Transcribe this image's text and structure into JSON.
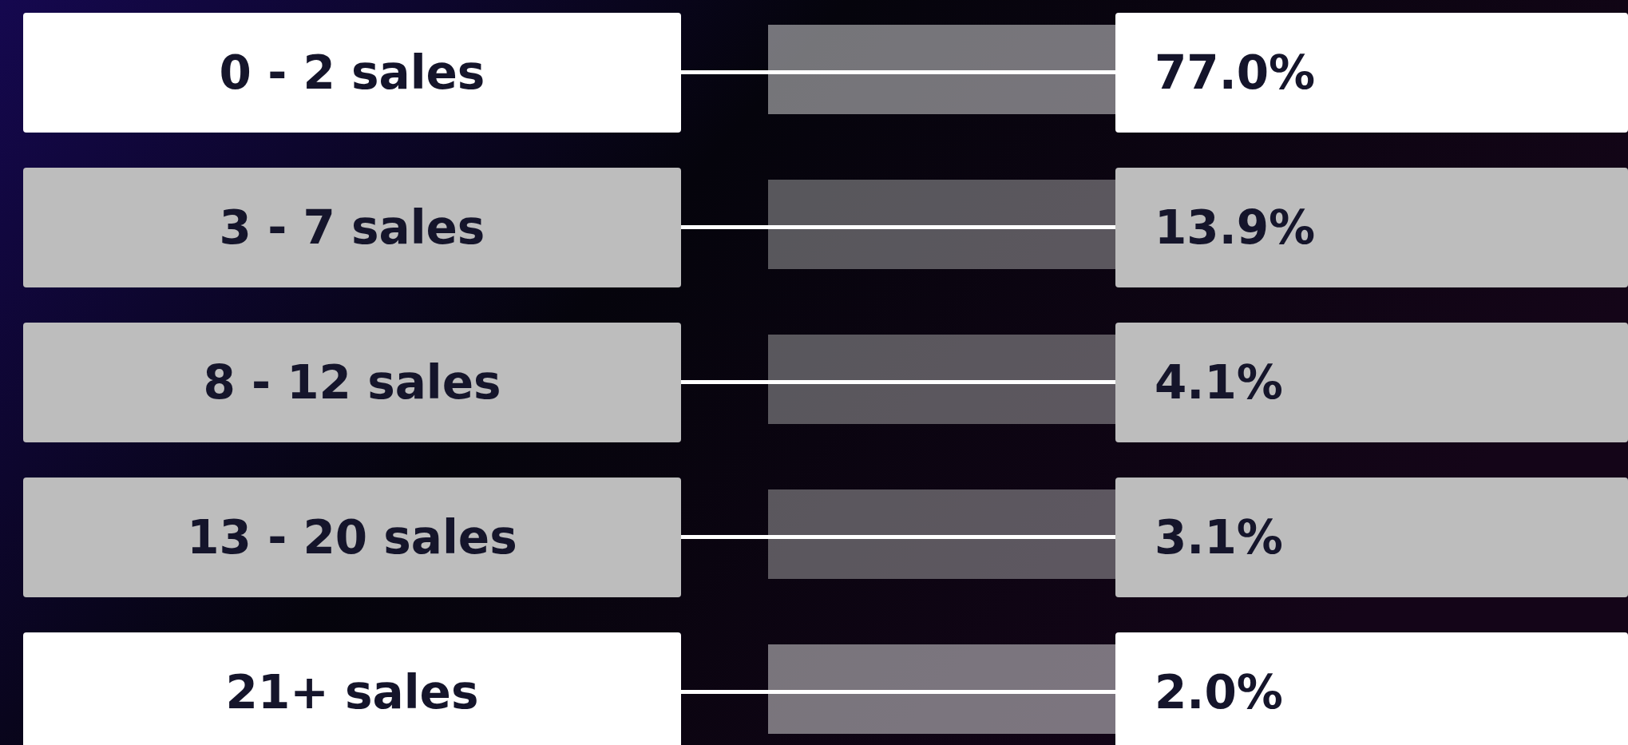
{
  "chart_data": {
    "type": "other",
    "categories": [
      "0 - 2 sales",
      "3 - 7 sales",
      "8 - 12 sales",
      "13 - 20 sales",
      "21+ sales"
    ],
    "values": [
      77.0,
      13.9,
      4.1,
      3.1,
      2.0
    ],
    "value_labels": [
      "77.0%",
      "13.9%",
      "4.1%",
      "3.1%",
      "2.0%"
    ],
    "colors": [
      "#ffffff",
      "#bdbdbd",
      "#bdbdbd",
      "#bdbdbd",
      "#ffffff"
    ]
  }
}
